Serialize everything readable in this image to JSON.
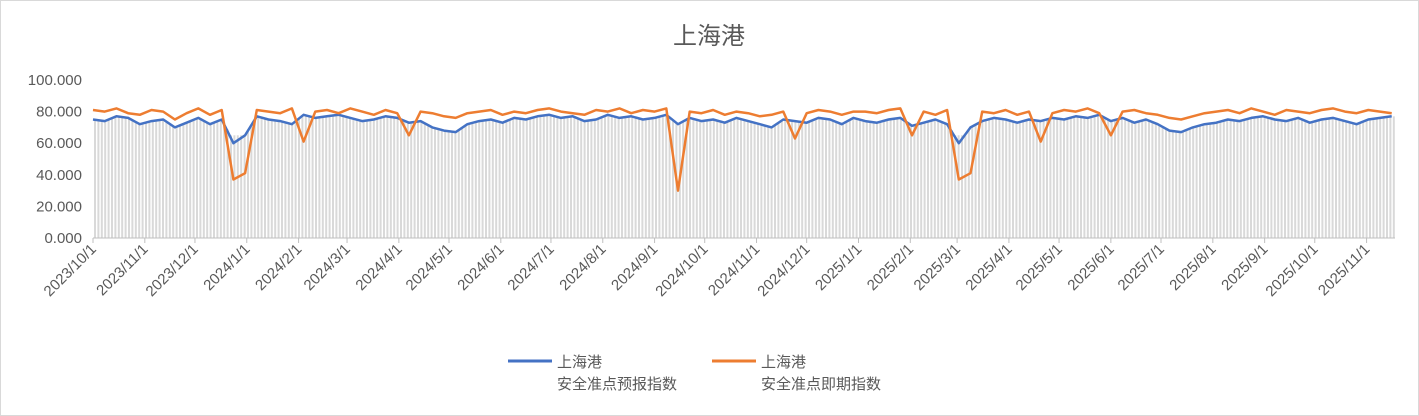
{
  "chart_data": {
    "type": "line",
    "title": "上海港",
    "xlabel": "",
    "ylabel": "",
    "ylim": [
      0,
      100
    ],
    "yticks": [
      "0.000",
      "20.000",
      "40.000",
      "60.000",
      "80.000",
      "100.000"
    ],
    "xticks": [
      "2023/10/1",
      "2023/11/1",
      "2023/12/1",
      "2024/1/1",
      "2024/2/1",
      "2024/3/1",
      "2024/4/1",
      "2024/5/1",
      "2024/6/1",
      "2024/7/1",
      "2024/8/1",
      "2024/9/1",
      "2024/10/1",
      "2024/11/1",
      "2024/12/1",
      "2025/1/1",
      "2025/2/1",
      "2025/3/1",
      "2025/4/1",
      "2025/5/1",
      "2025/6/1",
      "2025/7/1",
      "2025/8/1",
      "2025/9/1",
      "2025/10/1",
      "2025/11/1"
    ],
    "xlim": [
      "2023/10/1",
      "2025/11/18"
    ],
    "grid": false,
    "legend_position": "bottom",
    "background_bars_color": "#d9d9d9",
    "x": [
      "2023/10/1",
      "2023/10/8",
      "2023/10/15",
      "2023/10/22",
      "2023/10/29",
      "2023/11/5",
      "2023/11/12",
      "2023/11/19",
      "2023/11/26",
      "2023/12/3",
      "2023/12/10",
      "2023/12/17",
      "2023/12/24",
      "2023/12/31",
      "2024/1/7",
      "2024/1/14",
      "2024/1/21",
      "2024/1/28",
      "2024/2/4",
      "2024/2/11",
      "2024/2/18",
      "2024/2/25",
      "2024/3/3",
      "2024/3/10",
      "2024/3/17",
      "2024/3/24",
      "2024/3/31",
      "2024/4/7",
      "2024/4/14",
      "2024/4/21",
      "2024/4/28",
      "2024/5/5",
      "2024/5/12",
      "2024/5/19",
      "2024/5/26",
      "2024/6/2",
      "2024/6/9",
      "2024/6/16",
      "2024/6/23",
      "2024/6/30",
      "2024/7/7",
      "2024/7/14",
      "2024/7/21",
      "2024/7/28",
      "2024/8/4",
      "2024/8/11",
      "2024/8/18",
      "2024/8/25",
      "2024/9/1",
      "2024/9/8",
      "2024/9/15",
      "2024/9/22",
      "2024/9/29",
      "2024/10/6",
      "2024/10/13",
      "2024/10/20",
      "2024/10/27",
      "2024/11/3",
      "2024/11/10",
      "2024/11/17",
      "2024/11/24",
      "2024/12/1",
      "2024/12/8",
      "2024/12/15",
      "2024/12/22",
      "2024/12/29",
      "2025/1/5",
      "2025/1/12",
      "2025/1/19",
      "2025/1/26",
      "2025/2/2",
      "2025/2/9",
      "2025/2/16",
      "2025/2/23",
      "2025/3/2",
      "2025/3/9",
      "2025/3/16",
      "2025/3/23",
      "2025/3/30",
      "2025/4/6",
      "2025/4/13",
      "2025/4/20",
      "2025/4/27",
      "2025/5/4",
      "2025/5/11",
      "2025/5/18",
      "2025/5/25",
      "2025/6/1",
      "2025/6/8",
      "2025/6/15",
      "2025/6/22",
      "2025/6/29",
      "2025/7/6",
      "2025/7/13",
      "2025/7/20",
      "2025/7/27",
      "2025/8/3",
      "2025/8/10",
      "2025/8/17",
      "2025/8/24",
      "2025/8/31",
      "2025/9/7",
      "2025/9/14",
      "2025/9/21",
      "2025/9/28",
      "2025/10/5",
      "2025/10/12",
      "2025/10/19",
      "2025/10/26",
      "2025/11/2",
      "2025/11/9",
      "2025/11/16"
    ],
    "series": [
      {
        "name": "上海港 安全准点预报指数",
        "name_line1": "上海港",
        "name_line2": "安全准点预报指数",
        "color": "#4472c4",
        "values": [
          75,
          74,
          77,
          76,
          72,
          74,
          75,
          70,
          73,
          76,
          72,
          75,
          60,
          65,
          77,
          75,
          74,
          72,
          78,
          76,
          77,
          78,
          76,
          74,
          75,
          77,
          76,
          73,
          74,
          70,
          68,
          67,
          72,
          74,
          75,
          73,
          76,
          75,
          77,
          78,
          76,
          77,
          74,
          75,
          78,
          76,
          77,
          75,
          76,
          78,
          72,
          76,
          74,
          75,
          73,
          76,
          74,
          72,
          70,
          75,
          74,
          73,
          76,
          75,
          72,
          76,
          74,
          73,
          75,
          76,
          71,
          73,
          75,
          72,
          60,
          70,
          74,
          76,
          75,
          73,
          75,
          74,
          76,
          75,
          77,
          76,
          78,
          74,
          76,
          73,
          75,
          72,
          68,
          67,
          70,
          72,
          73,
          75,
          74,
          76,
          77,
          75,
          74,
          76,
          73,
          75,
          76,
          74,
          72,
          75,
          76,
          77
        ]
      },
      {
        "name": "上海港 安全准点即期指数",
        "name_line1": "上海港",
        "name_line2": "安全准点即期指数",
        "color": "#ed7d31",
        "values": [
          81,
          80,
          82,
          79,
          78,
          81,
          80,
          75,
          79,
          82,
          78,
          81,
          37,
          41,
          81,
          80,
          79,
          82,
          61,
          80,
          81,
          79,
          82,
          80,
          78,
          81,
          79,
          65,
          80,
          79,
          77,
          76,
          79,
          80,
          81,
          78,
          80,
          79,
          81,
          82,
          80,
          79,
          78,
          81,
          80,
          82,
          79,
          81,
          80,
          82,
          30,
          80,
          79,
          81,
          78,
          80,
          79,
          77,
          78,
          80,
          63,
          79,
          81,
          80,
          78,
          80,
          80,
          79,
          81,
          82,
          65,
          80,
          78,
          81,
          37,
          41,
          80,
          79,
          81,
          78,
          80,
          61,
          79,
          81,
          80,
          82,
          79,
          65,
          80,
          81,
          79,
          78,
          76,
          75,
          77,
          79,
          80,
          81,
          79,
          82,
          80,
          78,
          81,
          80,
          79,
          81,
          82,
          80,
          79,
          81,
          80,
          79
        ]
      }
    ]
  }
}
